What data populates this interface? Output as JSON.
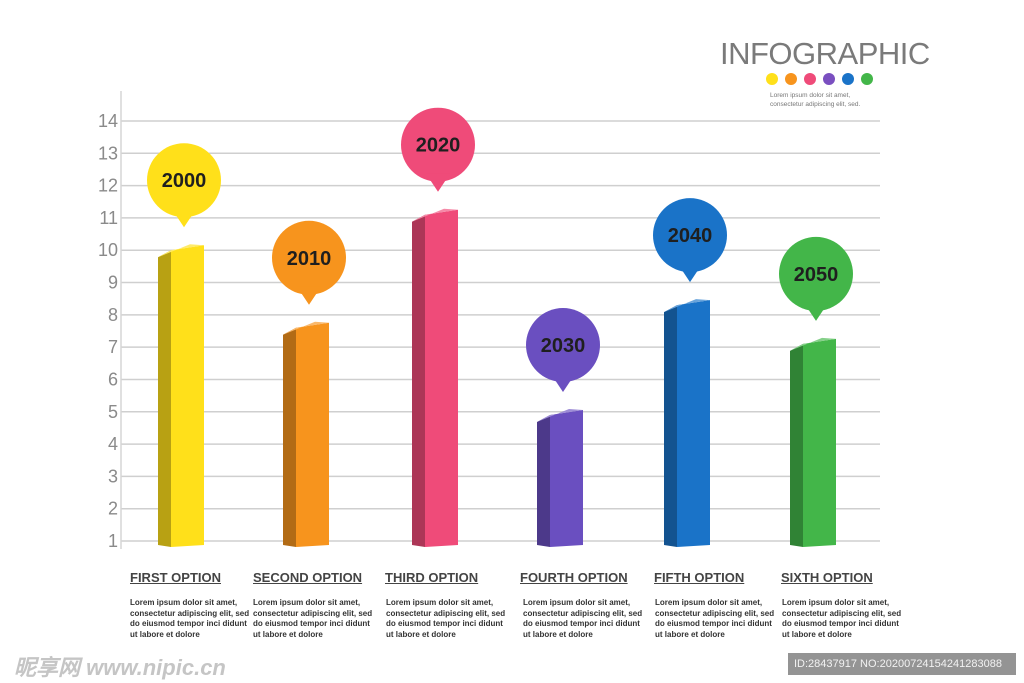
{
  "header": {
    "title": "INFOGRAPHIC",
    "subtitle_line1": "Lorem ipsum dolor sit amet,",
    "subtitle_line2": "consectetur adipiscing elit, sed.",
    "dot_colors": [
      "#ffe01a",
      "#f7941d",
      "#ef4b79",
      "#7a4fc0",
      "#1a73c8",
      "#43b649"
    ]
  },
  "chart_data": {
    "type": "bar",
    "categories": [
      "FIRST OPTION",
      "SECOND OPTION",
      "THIRD OPTION",
      "FOURTH OPTION",
      "FIFTH OPTION",
      "SIXTH OPTION"
    ],
    "values": [
      10,
      7.6,
      11.1,
      4.9,
      8.3,
      7.1
    ],
    "markers": [
      "2000",
      "2010",
      "2020",
      "2030",
      "2040",
      "2050"
    ],
    "colors": [
      "#ffe01a",
      "#f7941d",
      "#ef4b79",
      "#6a4fc0",
      "#1a73c8",
      "#43b649"
    ],
    "ylim": [
      1,
      14
    ],
    "yticks": [
      1,
      2,
      3,
      4,
      5,
      6,
      7,
      8,
      9,
      10,
      11,
      12,
      13,
      14
    ],
    "grid": true,
    "title": "INFOGRAPHIC"
  },
  "options": [
    {
      "label": "FIRST OPTION",
      "desc": "Lorem ipsum dolor sit amet, consectetur adipiscing elit, sed do eiusmod tempor inci didunt ut labore et dolore"
    },
    {
      "label": "SECOND OPTION",
      "desc": "Lorem ipsum dolor sit amet, consectetur adipiscing elit, sed do eiusmod tempor inci didunt ut labore et dolore"
    },
    {
      "label": "THIRD OPTION",
      "desc": "Lorem ipsum dolor sit amet, consectetur adipiscing elit, sed do eiusmod tempor inci didunt ut labore et dolore"
    },
    {
      "label": "FOURTH OPTION",
      "desc": "Lorem ipsum dolor sit amet, consectetur adipiscing elit, sed do eiusmod tempor inci didunt ut labore et dolore"
    },
    {
      "label": "FIFTH OPTION",
      "desc": "Lorem ipsum dolor sit amet, consectetur adipiscing elit, sed do eiusmod tempor inci didunt ut labore et dolore"
    },
    {
      "label": "SIXTH OPTION",
      "desc": "Lorem ipsum dolor sit amet, consectetur adipiscing elit, sed do eiusmod tempor inci didunt ut labore et dolore"
    }
  ],
  "watermark": {
    "left": "昵享网 www.nipic.cn",
    "right": "ID:28437917 NO:20200724154241283088"
  }
}
